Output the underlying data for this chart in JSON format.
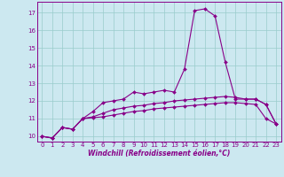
{
  "xlabel": "Windchill (Refroidissement éolien,°C)",
  "bg_color": "#cce8f0",
  "line_color": "#880088",
  "grid_color": "#99cccc",
  "line1": [
    10.0,
    9.9,
    10.5,
    10.4,
    11.0,
    11.4,
    11.9,
    12.0,
    12.1,
    12.5,
    12.4,
    12.5,
    12.6,
    12.5,
    13.8,
    17.1,
    17.2,
    16.8,
    14.2,
    12.1,
    12.1,
    12.1,
    11.8,
    10.7
  ],
  "line2": [
    10.0,
    9.9,
    10.5,
    10.4,
    11.0,
    11.1,
    11.3,
    11.5,
    11.6,
    11.7,
    11.75,
    11.85,
    11.9,
    12.0,
    12.05,
    12.1,
    12.15,
    12.2,
    12.25,
    12.2,
    12.1,
    12.1,
    11.8,
    10.7
  ],
  "line3": [
    10.0,
    9.9,
    10.5,
    10.4,
    11.0,
    11.05,
    11.1,
    11.2,
    11.3,
    11.4,
    11.45,
    11.55,
    11.6,
    11.65,
    11.7,
    11.75,
    11.8,
    11.85,
    11.9,
    11.9,
    11.85,
    11.8,
    11.0,
    10.7
  ],
  "xlim": [
    -0.5,
    23.5
  ],
  "ylim": [
    9.7,
    17.6
  ],
  "yticks": [
    10,
    11,
    12,
    13,
    14,
    15,
    16,
    17
  ],
  "xticks": [
    0,
    1,
    2,
    3,
    4,
    5,
    6,
    7,
    8,
    9,
    10,
    11,
    12,
    13,
    14,
    15,
    16,
    17,
    18,
    19,
    20,
    21,
    22,
    23
  ],
  "tick_fontsize": 5,
  "xlabel_fontsize": 5.5,
  "marker_size": 2.0,
  "line_width": 0.8
}
